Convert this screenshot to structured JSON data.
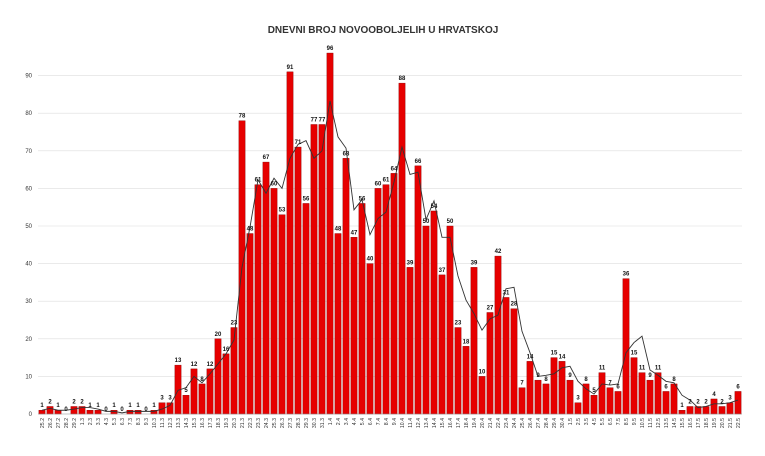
{
  "chart_data": {
    "type": "bar",
    "title": "DNEVNI BROJ NOVOOBOLJELIH U HRVATSKOJ",
    "categories": [
      "25.2",
      "26.2",
      "27.2",
      "28.2",
      "29.2",
      "1.3",
      "2.3",
      "3.3",
      "4.3",
      "5.3",
      "6.3",
      "7.3",
      "8.3",
      "9.3",
      "10.3",
      "11.3",
      "12.3",
      "13.3",
      "14.3",
      "15.3",
      "16.3",
      "17.3",
      "18.3",
      "19.3",
      "20.3",
      "21.3",
      "22.3",
      "23.3",
      "24.3",
      "25.3",
      "26.3",
      "27.3",
      "28.3",
      "29.3",
      "30.3",
      "31.3",
      "1.4",
      "2.4",
      "3.4",
      "4.4",
      "5.4",
      "6.4",
      "7.4",
      "8.4",
      "9.4",
      "10.4",
      "11.4",
      "12.4",
      "13.4",
      "14.4",
      "15.4",
      "16.4",
      "17.4",
      "18.4",
      "19.4",
      "20.4",
      "21.4",
      "22.4",
      "23.4",
      "24.4",
      "25.4",
      "26.4",
      "27.4",
      "28.4",
      "29.4",
      "30.4",
      "1.5",
      "2.5",
      "3.5",
      "4.5",
      "5.5",
      "6.5",
      "7.5",
      "8.5",
      "9.5",
      "10.5",
      "11.5",
      "12.5",
      "13.5",
      "14.5",
      "15.5",
      "16.5",
      "17.5",
      "18.5",
      "19.5",
      "20.5",
      "21.5",
      "22.5"
    ],
    "values": [
      1,
      2,
      1,
      0,
      2,
      2,
      1,
      1,
      0,
      1,
      0,
      1,
      1,
      0,
      1,
      3,
      3,
      13,
      5,
      12,
      8,
      12,
      20,
      16,
      23,
      78,
      48,
      61,
      67,
      60,
      53,
      91,
      71,
      56,
      77,
      77,
      96,
      48,
      68,
      47,
      56,
      40,
      60,
      61,
      64,
      88,
      39,
      66,
      50,
      54,
      37,
      50,
      23,
      18,
      39,
      10,
      27,
      42,
      31,
      28,
      7,
      14,
      9,
      8,
      15,
      14,
      9,
      3,
      8,
      5,
      11,
      7,
      6,
      36,
      15,
      11,
      9,
      11,
      6,
      8,
      1,
      2,
      2,
      2,
      4,
      2,
      3,
      6
    ],
    "data_labels": [
      "1",
      "2",
      "1",
      "0",
      "2",
      "2",
      "1",
      "1",
      "0",
      "1",
      "0",
      "1",
      "1",
      "0",
      "1",
      "3",
      "3",
      "13",
      "5",
      "12",
      "8",
      "12",
      "20",
      "16",
      "23",
      "78",
      "48",
      "61",
      "67",
      "60",
      "53",
      "91",
      "71",
      "56",
      "77",
      "77",
      "96",
      "48",
      "68",
      "47",
      "56",
      "40",
      "60",
      "61",
      "64",
      "88",
      "39",
      "66",
      "50",
      "54",
      "37",
      "50",
      "23",
      "18",
      "39",
      "10",
      "27",
      "42",
      "31",
      "28",
      "7",
      "14",
      "9",
      "8",
      "15",
      "14",
      "9",
      "3",
      "8",
      "5",
      "11",
      "7",
      "6",
      "36",
      "15",
      "11",
      "9",
      "11",
      "6",
      "8",
      "1",
      "2",
      "2",
      "2",
      "4",
      "2",
      "3",
      "6"
    ],
    "moving_average": [
      1,
      1.5,
      1,
      1,
      1.3,
      1.7,
      1.7,
      1.3,
      0.7,
      0.7,
      0.3,
      0.7,
      0.7,
      0.7,
      0.7,
      1.3,
      2.3,
      6.3,
      7,
      10,
      8.3,
      10.7,
      13.3,
      16,
      19.7,
      39,
      49.7,
      62.3,
      58.7,
      62.7,
      60,
      68,
      71.7,
      72.7,
      68,
      70,
      83.3,
      73.7,
      70.7,
      54.3,
      57,
      47.7,
      52,
      53.7,
      61.7,
      71,
      63.7,
      64.3,
      51.7,
      56.7,
      47,
      47,
      36.7,
      30.3,
      26.7,
      22.3,
      25.3,
      26.3,
      33.3,
      33.7,
      22,
      16.3,
      10,
      10.3,
      10.7,
      12.3,
      12.7,
      8.7,
      6.7,
      5.3,
      8,
      7.7,
      8,
      16.3,
      19,
      20.7,
      11.7,
      10.3,
      8.7,
      8.3,
      5,
      3.7,
      1.7,
      2,
      2.7,
      2.7,
      3,
      3.7
    ],
    "ylim": [
      0,
      100
    ],
    "yticks": [
      0,
      10,
      20,
      30,
      40,
      50,
      60,
      70,
      80,
      90
    ],
    "xlabel": "",
    "ylabel": "",
    "grid": true,
    "colors": {
      "bar": "#e60000",
      "bar_edge": "#8a0000",
      "line": "#333333",
      "grid": "#dddddd"
    }
  }
}
